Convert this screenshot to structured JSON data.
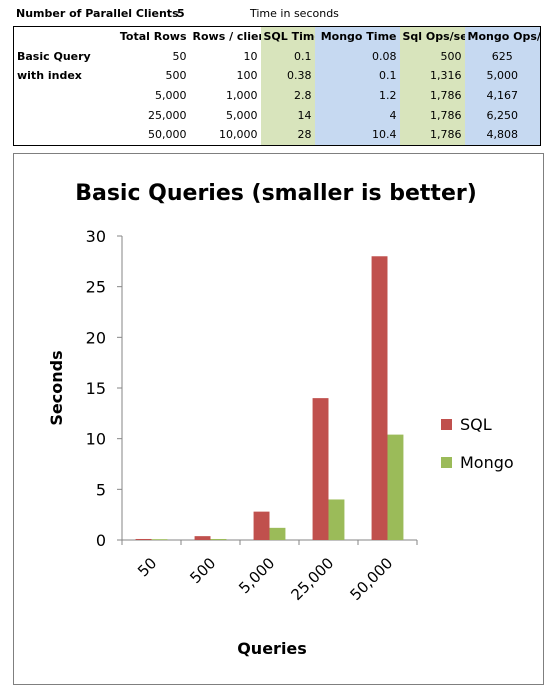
{
  "header": {
    "clients_label": "Number of Parallel Clients",
    "clients_value": "5",
    "time_note": "Time in seconds"
  },
  "table": {
    "columns": [
      "",
      "Total Rows",
      "Rows / client",
      "SQL Time",
      "Mongo Time",
      "Sql Ops/sec",
      "Mongo Ops/sec"
    ],
    "label_line1": "Basic Query",
    "label_line2": "with index",
    "rows": [
      [
        "50",
        "10",
        "0.1",
        "0.08",
        "500",
        "625"
      ],
      [
        "500",
        "100",
        "0.38",
        "0.1",
        "1,316",
        "5,000"
      ],
      [
        "5,000",
        "1,000",
        "2.8",
        "1.2",
        "1,786",
        "4,167"
      ],
      [
        "25,000",
        "5,000",
        "14",
        "4",
        "1,786",
        "6,250"
      ],
      [
        "50,000",
        "10,000",
        "28",
        "10.4",
        "1,786",
        "4,808"
      ]
    ],
    "colors": {
      "sql_fill": "#d8e4bc",
      "mongo_fill": "#c6d9f1"
    }
  },
  "chart_data": {
    "type": "bar",
    "title": "Basic Queries (smaller is better)",
    "xlabel": "Queries",
    "ylabel": "Seconds",
    "categories": [
      "50",
      "500",
      "5,000",
      "25,000",
      "50,000"
    ],
    "series": [
      {
        "name": "SQL",
        "values": [
          0.1,
          0.38,
          2.8,
          14,
          28
        ],
        "color": "#c0504d"
      },
      {
        "name": "Mongo",
        "values": [
          0.08,
          0.1,
          1.2,
          4,
          10.4
        ],
        "color": "#9bbb59"
      }
    ],
    "ylim": [
      0,
      30
    ],
    "yticks": [
      "0",
      "5",
      "10",
      "15",
      "20",
      "25",
      "30"
    ],
    "grid": false,
    "legend": "right"
  }
}
